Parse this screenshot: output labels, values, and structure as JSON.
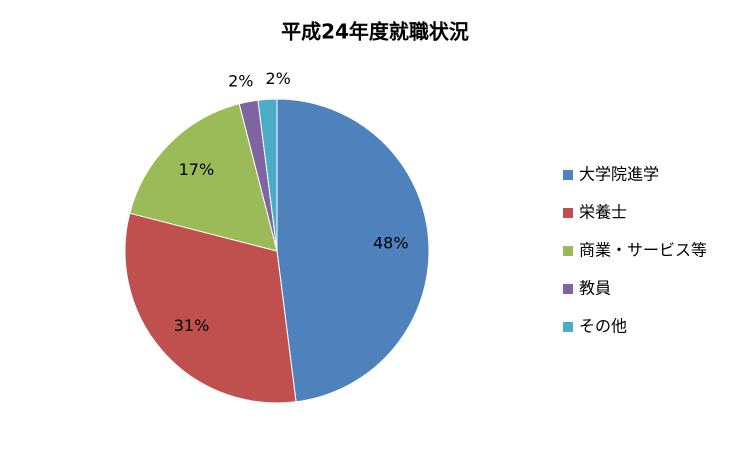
{
  "chart_data": {
    "type": "pie",
    "title": "平成24年度就職状況",
    "categories": [
      "大学院進学",
      "栄養士",
      "商業・サービス等",
      "教員",
      "その他"
    ],
    "values": [
      48,
      31,
      17,
      2,
      2
    ],
    "value_labels": [
      "48%",
      "31%",
      "17%",
      "2%",
      "2%"
    ],
    "colors": [
      "#4f81bd",
      "#c0504d",
      "#9bbb59",
      "#8064a2",
      "#4bacc6"
    ],
    "legend": "right"
  }
}
